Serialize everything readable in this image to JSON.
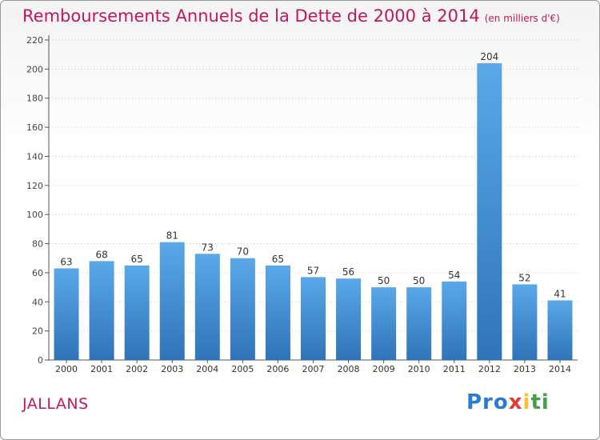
{
  "title": "Remboursements Annuels de la Dette de 2000 à 2014",
  "subtitle": "(en milliers d'€)",
  "commune": "JALLANS",
  "logo": {
    "p1": "Pro",
    "p2": "x",
    "p3": "i",
    "p4": "ti"
  },
  "colors": {
    "bar_top": "#5aa8e8",
    "bar_bottom": "#2f74b8",
    "title": "#c2185b"
  },
  "chart_data": {
    "type": "bar",
    "categories": [
      "2000",
      "2001",
      "2002",
      "2003",
      "2004",
      "2005",
      "2006",
      "2007",
      "2008",
      "2009",
      "2010",
      "2011",
      "2012",
      "2013",
      "2014"
    ],
    "values": [
      63,
      68,
      65,
      81,
      73,
      70,
      65,
      57,
      56,
      50,
      50,
      54,
      204,
      52,
      41
    ],
    "yticks": [
      0,
      20,
      40,
      60,
      80,
      100,
      120,
      140,
      160,
      180,
      200,
      220
    ],
    "ylim": [
      0,
      220
    ],
    "grid": "horizontal-dotted",
    "xlabel": "",
    "ylabel": ""
  }
}
